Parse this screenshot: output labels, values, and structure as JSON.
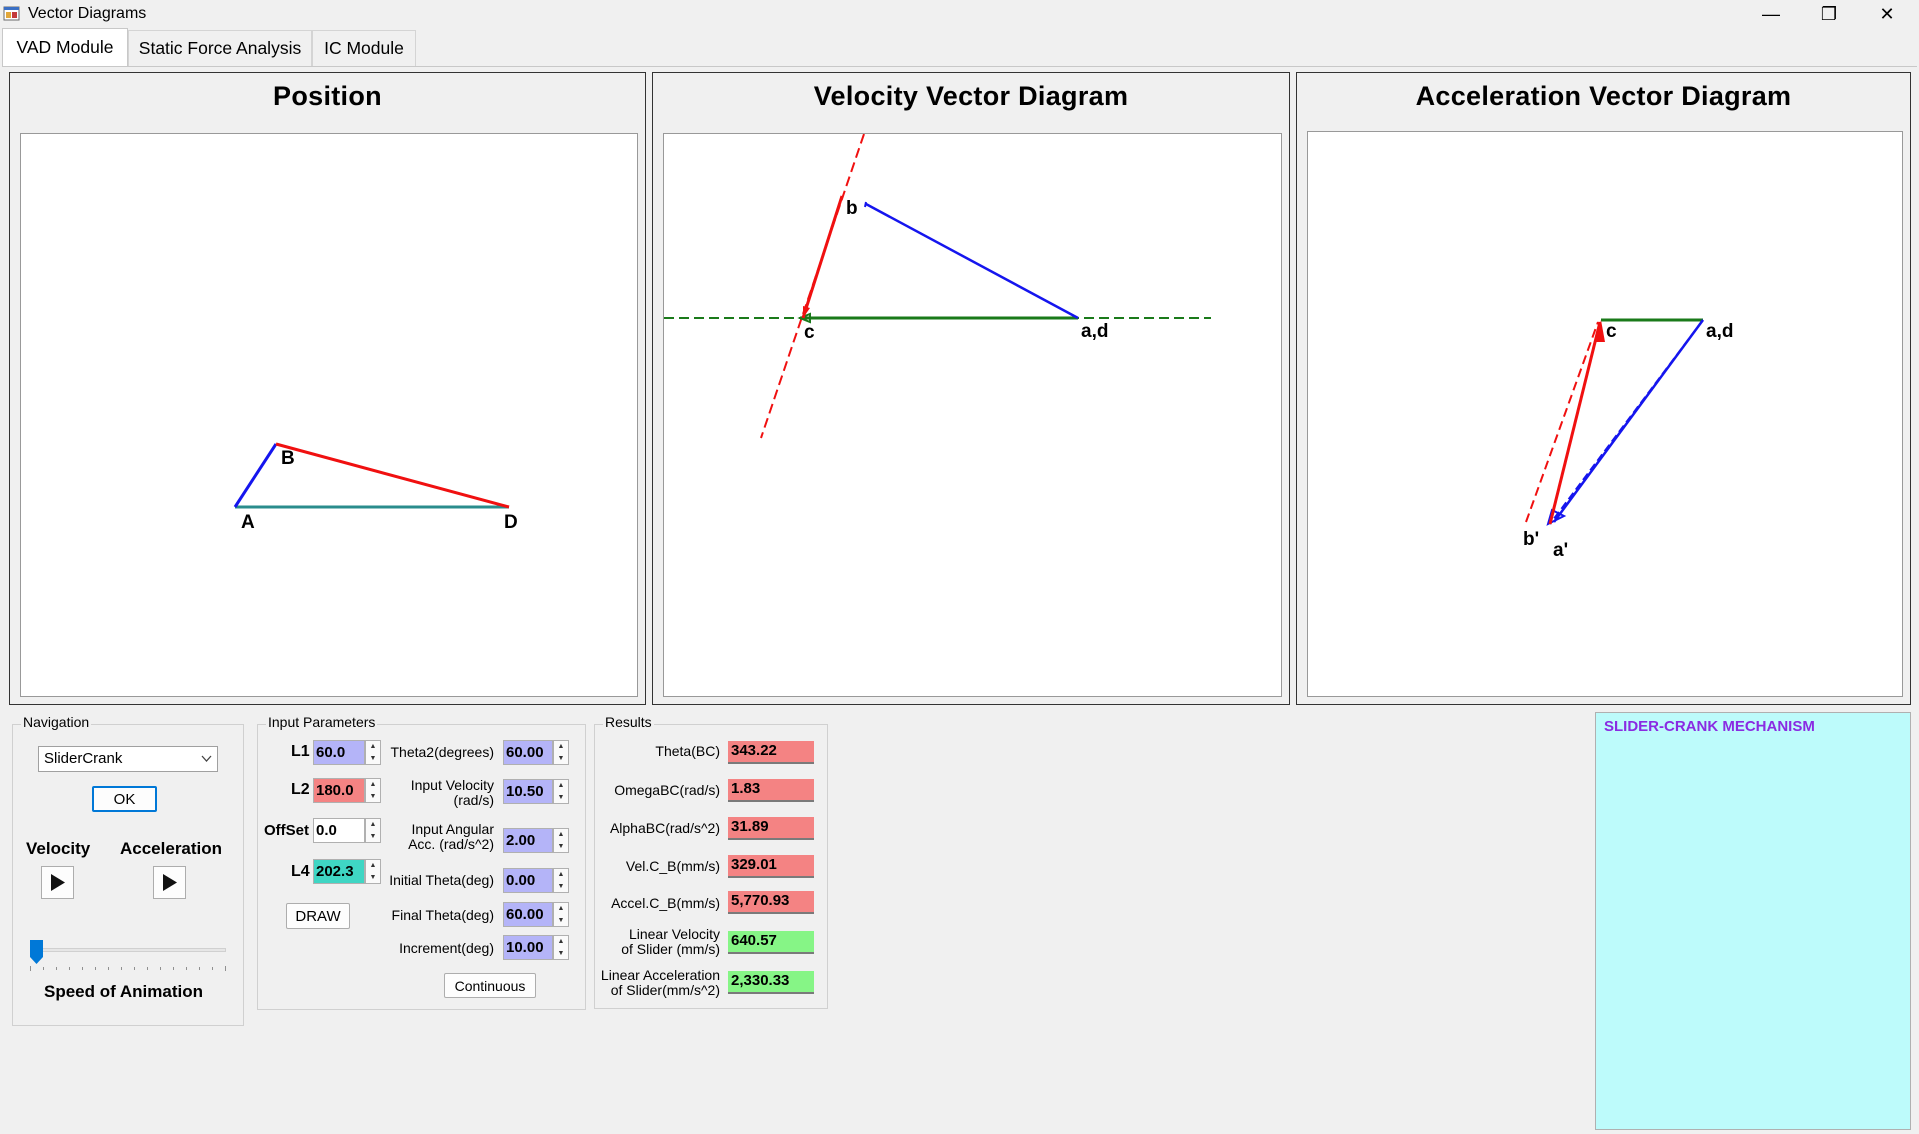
{
  "window": {
    "title": "Vector Diagrams",
    "controls": {
      "minimize": "—",
      "restore": "❐",
      "close": "✕"
    }
  },
  "tabs": [
    {
      "label": "VAD Module",
      "active": true
    },
    {
      "label": "Static Force Analysis",
      "active": false
    },
    {
      "label": "IC Module",
      "active": false
    }
  ],
  "panels": {
    "position": {
      "title": "Position",
      "points": {
        "A": "A",
        "B": "B",
        "D": "D"
      }
    },
    "velocity": {
      "title": "Velocity Vector Diagram",
      "points": {
        "b": "b",
        "c": "c",
        "ad": "a,d"
      }
    },
    "acceleration": {
      "title": "Acceleration Vector Diagram",
      "points": {
        "c": "c",
        "ad": "a,d",
        "bprime": "b'",
        "aprime": "a'"
      }
    }
  },
  "navigation": {
    "group_title": "Navigation",
    "mechanism_select": "SliderCrank",
    "ok_label": "OK",
    "velocity_label": "Velocity",
    "acceleration_label": "Acceleration",
    "speed_label": "Speed of Animation",
    "speed_value": 0
  },
  "inputs": {
    "group_title": "Input Parameters",
    "L1": {
      "label": "L1",
      "value": "60.0"
    },
    "L2": {
      "label": "L2",
      "value": "180.0"
    },
    "offset": {
      "label": "OffSet",
      "value": "0.0"
    },
    "L4": {
      "label": "L4",
      "value": "202.3"
    },
    "draw_label": "DRAW",
    "theta2": {
      "label": "Theta2(degrees)",
      "value": "60.00"
    },
    "input_velocity": {
      "label_line1": "Input Velocity",
      "label_line2": "(rad/s)",
      "value": "10.50"
    },
    "input_angular_acc": {
      "label_line1": "Input Angular",
      "label_line2": "Acc. (rad/s^2)",
      "value": "2.00"
    },
    "initial_theta": {
      "label": "Initial Theta(deg)",
      "value": "0.00"
    },
    "final_theta": {
      "label": "Final Theta(deg)",
      "value": "60.00"
    },
    "increment": {
      "label": "Increment(deg)",
      "value": "10.00"
    },
    "continuous_label": "Continuous"
  },
  "results": {
    "group_title": "Results",
    "theta_bc": {
      "label": "Theta(BC)",
      "value": "343.22"
    },
    "omega_bc": {
      "label": "OmegaBC(rad/s)",
      "value": "1.83"
    },
    "alpha_bc": {
      "label": "AlphaBC(rad/s^2)",
      "value": "31.89"
    },
    "vel_cb": {
      "label": "Vel.C_B(mm/s)",
      "value": "329.01"
    },
    "accel_cb": {
      "label": "Accel.C_B(mm/s)",
      "value": "5,770.93"
    },
    "lin_vel": {
      "label_line1": "Linear Velocity",
      "label_line2": "of Slider (mm/s)",
      "value": "640.57"
    },
    "lin_acc": {
      "label_line1": "Linear Acceleration",
      "label_line2": "of Slider(mm/s^2)",
      "value": "2,330.33"
    }
  },
  "info_box": {
    "text": "SLIDER-CRANK MECHANISM"
  },
  "colors": {
    "link_blue": "#1515ee",
    "link_red": "#f01010",
    "ground_teal": "#2a8c8c",
    "slider_green": "#1a7a1a",
    "input_purple": "#b4b4f8",
    "red_field": "#f48383",
    "green_field": "#86f586",
    "teal_field": "#3fd6c4",
    "info_bg": "#bdfbfb",
    "info_text": "#8a2be2"
  },
  "icons": {
    "play": "play-triangle",
    "dropdown": "chevron-down",
    "app": "app-window-icon"
  }
}
